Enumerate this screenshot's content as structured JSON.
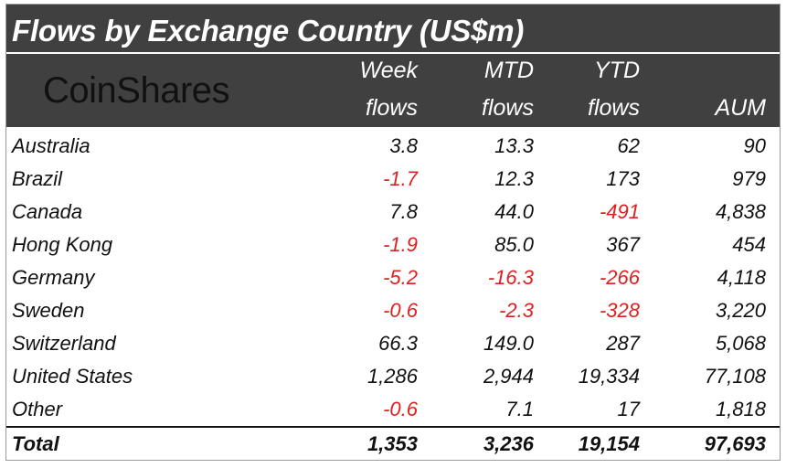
{
  "title": "Flows by Exchange Country (US$m)",
  "logo": "CoinShares",
  "columns": [
    {
      "line1": "Week",
      "line2": "flows"
    },
    {
      "line1": "MTD",
      "line2": "flows"
    },
    {
      "line1": "YTD",
      "line2": "flows"
    },
    {
      "line1": "",
      "line2": "AUM"
    }
  ],
  "rows": [
    {
      "country": "Australia",
      "week": "3.8",
      "mtd": "13.3",
      "ytd": "62",
      "aum": "90"
    },
    {
      "country": "Brazil",
      "week": "-1.7",
      "mtd": "12.3",
      "ytd": "173",
      "aum": "979"
    },
    {
      "country": "Canada",
      "week": "7.8",
      "mtd": "44.0",
      "ytd": "-491",
      "aum": "4,838"
    },
    {
      "country": "Hong Kong",
      "week": "-1.9",
      "mtd": "85.0",
      "ytd": "367",
      "aum": "454"
    },
    {
      "country": "Germany",
      "week": "-5.2",
      "mtd": "-16.3",
      "ytd": "-266",
      "aum": "4,118"
    },
    {
      "country": "Sweden",
      "week": "-0.6",
      "mtd": "-2.3",
      "ytd": "-328",
      "aum": "3,220"
    },
    {
      "country": "Switzerland",
      "week": "66.3",
      "mtd": "149.0",
      "ytd": "287",
      "aum": "5,068"
    },
    {
      "country": "United States",
      "week": "1,286",
      "mtd": "2,944",
      "ytd": "19,334",
      "aum": "77,108"
    },
    {
      "country": "Other",
      "week": "-0.6",
      "mtd": "7.1",
      "ytd": "17",
      "aum": "1,818"
    }
  ],
  "total": {
    "country": "Total",
    "week": "1,353",
    "mtd": "3,236",
    "ytd": "19,154",
    "aum": "97,693"
  },
  "colors": {
    "header_bg": "#404040",
    "header_text": "#ffffff",
    "negative": "#e02020",
    "text": "#111111"
  }
}
